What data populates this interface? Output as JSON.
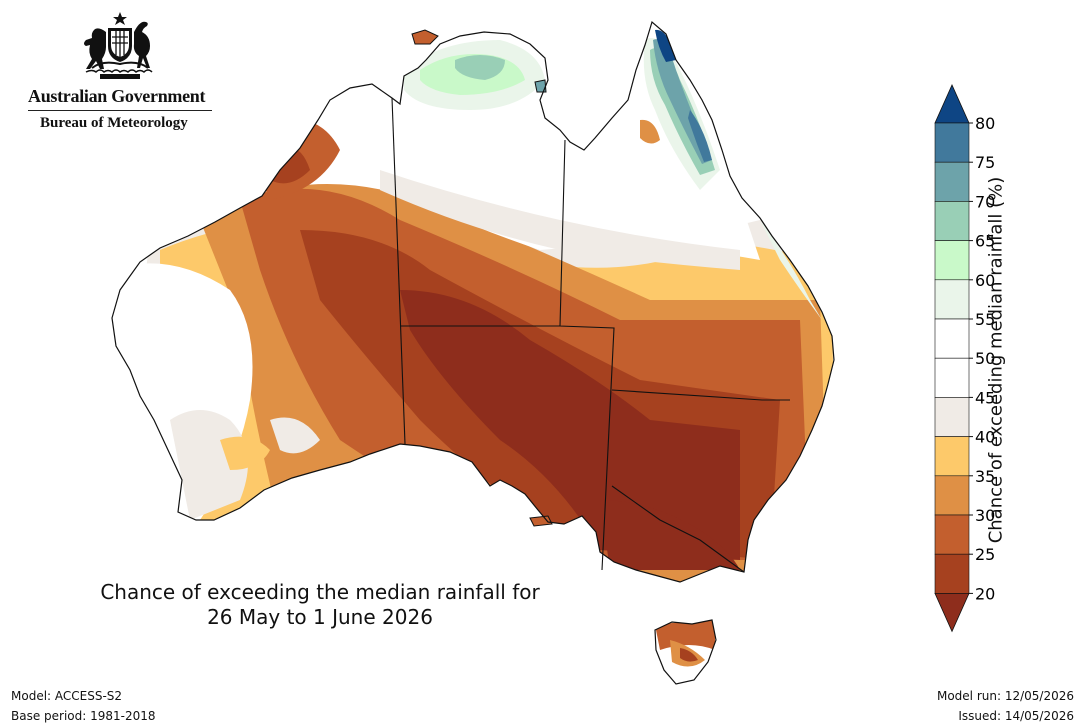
{
  "header": {
    "org_line1": "Australian Government",
    "org_line2": "Bureau of Meteorology"
  },
  "map": {
    "title_line1": "Chance of exceeding the median rainfall for",
    "title_line2": "26 May to 1 June 2026",
    "region": "Australia",
    "colors": {
      "c20": "#8e2d1c",
      "c25": "#b14b24",
      "c30": "#c96a32",
      "c35": "#de913f",
      "c40": "#fcc76a",
      "c45": "#f0ebe6",
      "c50": "#ffffff",
      "c55": "#ffffff",
      "c60": "#e8f4e6",
      "c65": "#c7f7c7",
      "c70": "#98cfb4",
      "c75": "#6ea3a8",
      "c80": "#3f6f96",
      "c85": "#123f7c"
    }
  },
  "colorbar": {
    "label": "Chance of exceeding median rainfall (%)",
    "ticks": [
      "20",
      "25",
      "30",
      "35",
      "40",
      "45",
      "50",
      "55",
      "60",
      "65",
      "70",
      "75",
      "80"
    ],
    "bands": [
      {
        "range": "<20",
        "color": "#8e2d1c"
      },
      {
        "range": "20-25",
        "color": "#a6411f"
      },
      {
        "range": "25-30",
        "color": "#c35f2e"
      },
      {
        "range": "30-35",
        "color": "#df9045"
      },
      {
        "range": "35-40",
        "color": "#fdc96a"
      },
      {
        "range": "40-45",
        "color": "#f0ebe6"
      },
      {
        "range": "45-50",
        "color": "#ffffff"
      },
      {
        "range": "50-55",
        "color": "#ffffff"
      },
      {
        "range": "55-60",
        "color": "#eaf5ea"
      },
      {
        "range": "60-65",
        "color": "#c9f9c9"
      },
      {
        "range": "65-70",
        "color": "#99cfb6"
      },
      {
        "range": "70-75",
        "color": "#6da3aa"
      },
      {
        "range": "75-80",
        "color": "#41799c"
      },
      {
        "range": ">80",
        "color": "#0e4584"
      }
    ]
  },
  "footer": {
    "model": "Model: ACCESS-S2",
    "base_period": "Base period: 1981-2018",
    "model_run": "Model run: 12/05/2026",
    "issued": "Issued: 14/05/2026"
  }
}
